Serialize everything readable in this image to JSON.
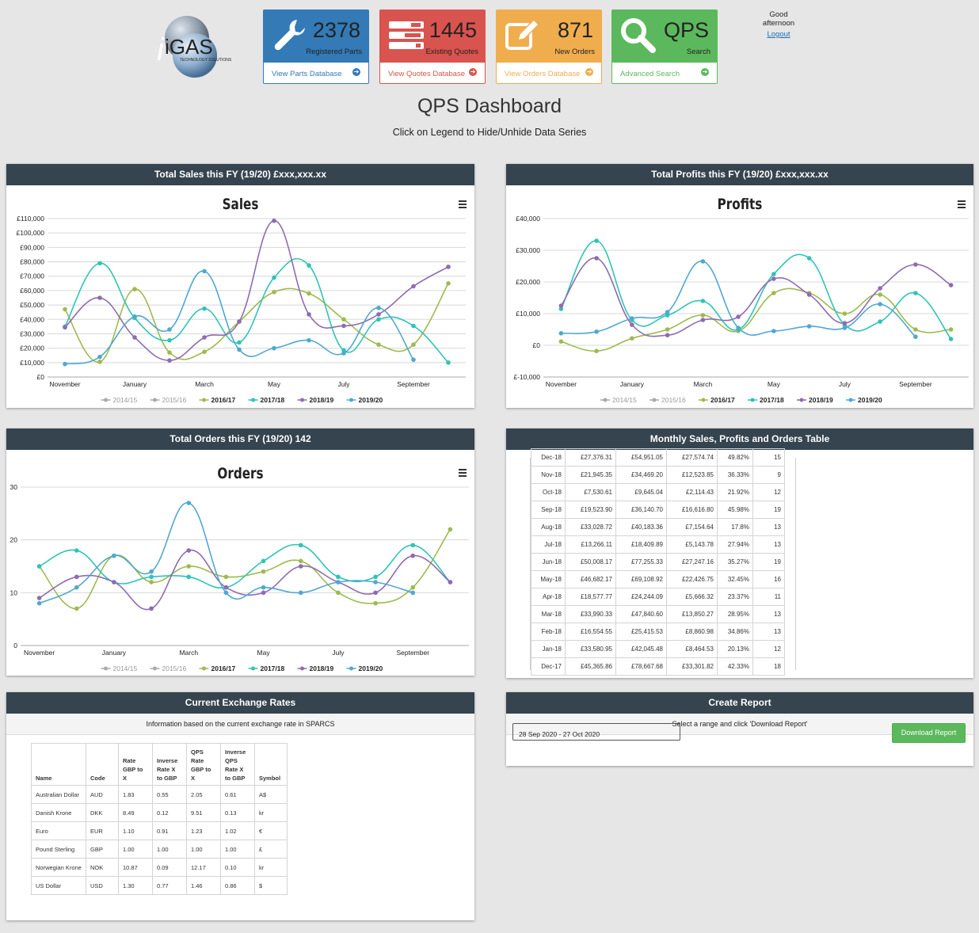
{
  "logo": {
    "brand": "iGAS",
    "tagline": "TECHNOLOGY SOLUTIONS"
  },
  "cards": [
    {
      "count": "2378",
      "label": "Registered Parts",
      "link": "View Parts Database",
      "color": "#337ab7",
      "icon": "wrench-icon"
    },
    {
      "count": "1445",
      "label": "Existing Quotes",
      "link": "View Quotes Database",
      "color": "#d9534f",
      "icon": "tasks-icon"
    },
    {
      "count": "871",
      "label": "New Orders",
      "link": "View Orders Database",
      "color": "#f0ad4e",
      "icon": "edit-icon"
    },
    {
      "count": "QPS",
      "label": "Search",
      "link": "Advanced Search",
      "color": "#5cb85c",
      "icon": "search-icon"
    }
  ],
  "user": {
    "greeting": "Good afternoon",
    "logout": "Logout"
  },
  "page": {
    "title": "QPS Dashboard",
    "subtitle": "Click on Legend to Hide/Unhide Data Series"
  },
  "panels": {
    "sales": "Total Sales this FY (19/20)  £xxx,xxx.xx",
    "profits": "Total Profits this FY (19/20)  £xxx,xxx.xx",
    "orders": "Total Orders this FY (19/20)  142",
    "table": "Monthly Sales, Profits and Orders Table",
    "exchange": "Current Exchange Rates",
    "report": "Create Report"
  },
  "chart_data": [
    {
      "type": "line",
      "title": "Sales",
      "x_labels": [
        "November",
        "",
        "January",
        "",
        "March",
        "",
        "May",
        "",
        "July",
        "",
        "September",
        ""
      ],
      "ylim": [
        0,
        110000
      ],
      "yticks": [
        "£0",
        "£10,000",
        "£20,000",
        "£30,000",
        "£40,000",
        "£50,000",
        "£60,000",
        "£70,000",
        "£80,000",
        "£90,000",
        "£100,000",
        "£110,000"
      ],
      "legend_position": "bottom",
      "series": [
        {
          "name": "2014/15",
          "color": "#7cb5ec",
          "values": [],
          "hidden": true
        },
        {
          "name": "2015/16",
          "color": "#f7a35c",
          "values": [],
          "hidden": true
        },
        {
          "name": "2016/17",
          "color": "#9dbb4e",
          "values": [
            47000,
            10500,
            61000,
            17000,
            17500,
            38500,
            59000,
            58000,
            40000,
            22500,
            22500,
            65000
          ]
        },
        {
          "name": "2017/18",
          "color": "#2ec4b6",
          "values": [
            35000,
            79000,
            41000,
            25500,
            47500,
            24000,
            69000,
            77500,
            18500,
            40000,
            35500,
            10000
          ]
        },
        {
          "name": "2018/19",
          "color": "#8e6bb3",
          "values": [
            34500,
            55000,
            27500,
            11500,
            27500,
            38500,
            108500,
            43500,
            35500,
            43500,
            63000,
            76500
          ]
        },
        {
          "name": "2019/20",
          "color": "#4fa8d1",
          "values": [
            9000,
            14000,
            42000,
            33000,
            73500,
            19000,
            20000,
            25500,
            16500,
            48000,
            12000,
            null
          ]
        }
      ]
    },
    {
      "type": "line",
      "title": "Profits",
      "x_labels": [
        "November",
        "",
        "January",
        "",
        "March",
        "",
        "May",
        "",
        "July",
        "",
        "September",
        ""
      ],
      "ylim": [
        -10000,
        40000
      ],
      "yticks": [
        "£-10,000",
        "£0",
        "£10,000",
        "£20,000",
        "£30,000",
        "£40,000"
      ],
      "legend_position": "bottom",
      "series": [
        {
          "name": "2014/15",
          "color": "#7cb5ec",
          "values": [],
          "hidden": true
        },
        {
          "name": "2015/16",
          "color": "#f7a35c",
          "values": [],
          "hidden": true
        },
        {
          "name": "2016/17",
          "color": "#9dbb4e",
          "values": [
            1200,
            -1800,
            2200,
            5000,
            9500,
            4500,
            16500,
            16500,
            10000,
            16000,
            5000,
            5000
          ]
        },
        {
          "name": "2017/18",
          "color": "#2ec4b6",
          "values": [
            11500,
            33000,
            8000,
            9500,
            14000,
            5000,
            22500,
            27500,
            6500,
            7500,
            16500,
            2000
          ]
        },
        {
          "name": "2018/19",
          "color": "#8e6bb3",
          "values": [
            12500,
            27500,
            6500,
            3200,
            8000,
            9000,
            21000,
            16000,
            7000,
            18000,
            25500,
            19000
          ]
        },
        {
          "name": "2019/20",
          "color": "#4fa8d1",
          "values": [
            3800,
            4300,
            8500,
            10500,
            26500,
            5500,
            4500,
            6000,
            5500,
            13000,
            2700,
            null
          ]
        }
      ]
    },
    {
      "type": "line",
      "title": "Orders",
      "x_labels": [
        "November",
        "",
        "January",
        "",
        "March",
        "",
        "May",
        "",
        "July",
        "",
        "September",
        ""
      ],
      "ylim": [
        0,
        30
      ],
      "yticks": [
        "0",
        "10",
        "20",
        "30"
      ],
      "legend_position": "bottom",
      "series": [
        {
          "name": "2014/15",
          "color": "#7cb5ec",
          "values": [],
          "hidden": true
        },
        {
          "name": "2015/16",
          "color": "#f7a35c",
          "values": [],
          "hidden": true
        },
        {
          "name": "2016/17",
          "color": "#9dbb4e",
          "values": [
            15,
            7,
            17,
            12,
            15,
            13,
            14,
            16,
            10,
            8,
            11,
            22
          ]
        },
        {
          "name": "2017/18",
          "color": "#2ec4b6",
          "values": [
            15,
            18,
            12,
            13,
            13,
            11,
            16,
            19,
            13,
            13,
            19,
            12
          ]
        },
        {
          "name": "2018/19",
          "color": "#8e6bb3",
          "values": [
            9,
            13,
            12,
            7,
            18,
            11,
            10,
            15,
            12,
            10,
            17,
            12
          ]
        },
        {
          "name": "2019/20",
          "color": "#4fa8d1",
          "values": [
            8,
            11,
            17,
            14,
            27,
            10,
            11,
            10,
            12,
            12,
            10,
            null
          ]
        }
      ]
    }
  ],
  "monthly_table": {
    "rows": [
      [
        "Dec-18",
        "£27,376.31",
        "£54,951.05",
        "£27,574.74",
        "49.82%",
        "15"
      ],
      [
        "Nov-18",
        "£21,945.35",
        "£34,469.20",
        "£12,523.85",
        "36.33%",
        "9"
      ],
      [
        "Oct-18",
        "£7,530.61",
        "£9,645.04",
        "£2,114.43",
        "21.92%",
        "12"
      ],
      [
        "Sep-18",
        "£19,523.90",
        "£36,140.70",
        "£16,616.80",
        "45.98%",
        "19"
      ],
      [
        "Aug-18",
        "£33,028.72",
        "£40,183.36",
        "£7,154.64",
        "17.8%",
        "13"
      ],
      [
        "Jul-18",
        "£13,266.11",
        "£18,409.89",
        "£5,143.78",
        "27.94%",
        "13"
      ],
      [
        "Jun-18",
        "£50,008.17",
        "£77,255.33",
        "£27,247.16",
        "35.27%",
        "19"
      ],
      [
        "May-18",
        "£46,682.17",
        "£69,108.92",
        "£22,426.75",
        "32.45%",
        "16"
      ],
      [
        "Apr-18",
        "£18,577.77",
        "£24,244.09",
        "£5,666.32",
        "23.37%",
        "11"
      ],
      [
        "Mar-18",
        "£33,990.33",
        "£47,840.60",
        "£13,850.27",
        "28.95%",
        "13"
      ],
      [
        "Feb-18",
        "£16,554.55",
        "£25,415.53",
        "£8,860.98",
        "34.86%",
        "13"
      ],
      [
        "Jan-18",
        "£33,580.95",
        "£42,045.48",
        "£8,464.53",
        "20.13%",
        "12"
      ],
      [
        "Dec-17",
        "£45,365.86",
        "£78,667.68",
        "£33,301.82",
        "42.33%",
        "18"
      ]
    ]
  },
  "exchange": {
    "info": "Information based on the current exchange rate in SPARCS",
    "headers": [
      "Name",
      "Code",
      "Rate GBP to X",
      "Inverse Rate X to GBP",
      "QPS Rate GBP to X",
      "Inverse QPS Rate X to GBP",
      "Symbol"
    ],
    "rows": [
      [
        "Australian Dollar",
        "AUD",
        "1.83",
        "0.55",
        "2.05",
        "0.61",
        "A$"
      ],
      [
        "Danish Krone",
        "DKK",
        "8.49",
        "0.12",
        "9.51",
        "0.13",
        "kr"
      ],
      [
        "Euro",
        "EUR",
        "1.10",
        "0.91",
        "1.23",
        "1.02",
        "€"
      ],
      [
        "Pound Sterling",
        "GBP",
        "1.00",
        "1.00",
        "1.00",
        "1.00",
        "£"
      ],
      [
        "Norwegian Krone",
        "NOK",
        "10.87",
        "0.09",
        "12.17",
        "0.10",
        "kr"
      ],
      [
        "US Dollar",
        "USD",
        "1.30",
        "0.77",
        "1.46",
        "0.86",
        "$"
      ]
    ]
  },
  "report": {
    "info": "Select a range and click 'Download Report'",
    "date_range": "28 Sep 2020 - 27 Oct 2020",
    "button": "Download Report"
  }
}
